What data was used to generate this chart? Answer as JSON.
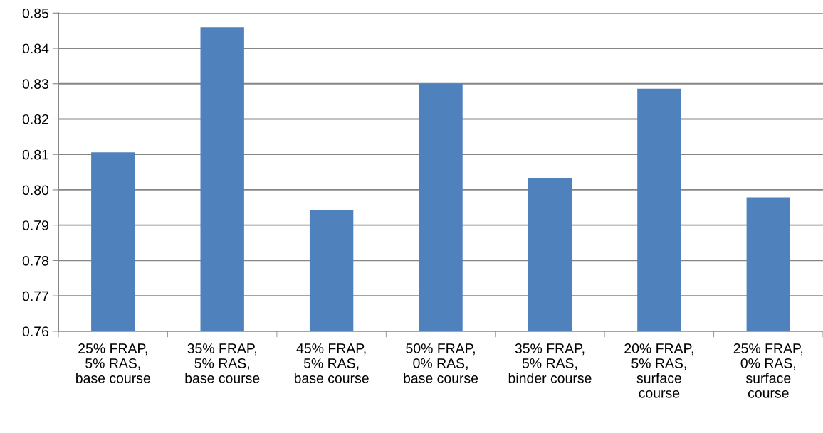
{
  "chart_data": {
    "type": "bar",
    "categories": [
      "25% FRAP,\n5% RAS,\nbase course",
      "35% FRAP,\n5% RAS,\nbase course",
      "45% FRAP,\n5% RAS,\nbase course",
      "50% FRAP,\n0% RAS,\nbase course",
      "35% FRAP,\n5% RAS,\nbinder course",
      "20% FRAP,\n5% RAS,\nsurface\ncourse",
      "25% FRAP,\n0% RAS,\nsurface\ncourse"
    ],
    "values": [
      0.8106,
      0.846,
      0.7942,
      0.83,
      0.8034,
      0.8286,
      0.7979
    ],
    "color": "#4f81bd",
    "ylim": [
      0.76,
      0.85
    ],
    "yticks": [
      {
        "value": 0.76,
        "label": "0.76"
      },
      {
        "value": 0.77,
        "label": "0.77"
      },
      {
        "value": 0.78,
        "label": "0.78"
      },
      {
        "value": 0.79,
        "label": "0.79"
      },
      {
        "value": 0.8,
        "label": "0.80"
      },
      {
        "value": 0.81,
        "label": "0.81"
      },
      {
        "value": 0.82,
        "label": "0.82"
      },
      {
        "value": 0.83,
        "label": "0.83"
      },
      {
        "value": 0.84,
        "label": "0.84"
      },
      {
        "value": 0.85,
        "label": "0.85"
      }
    ],
    "grid": "y",
    "legend": false
  }
}
